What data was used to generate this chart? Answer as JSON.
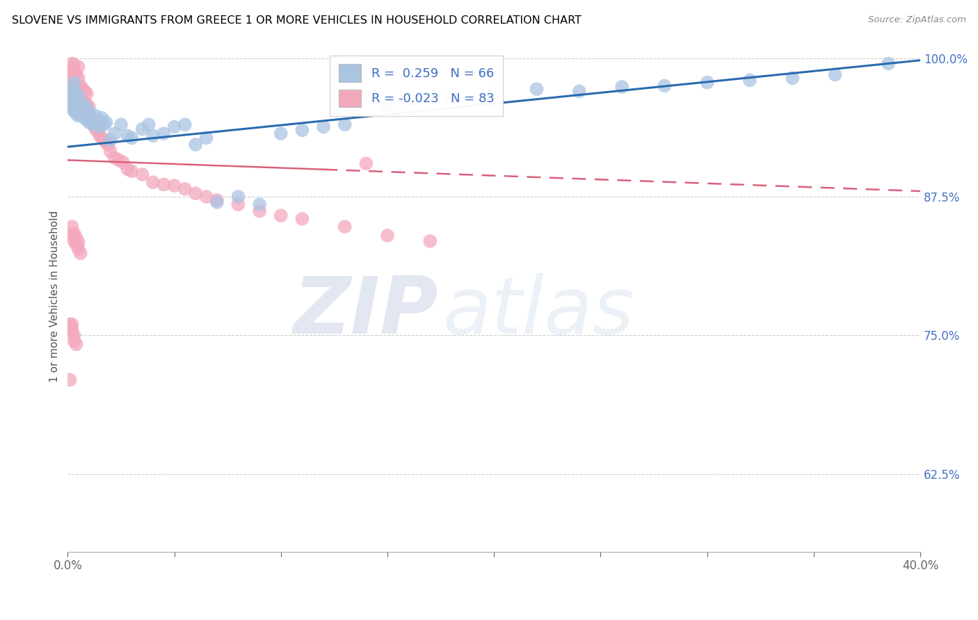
{
  "title": "SLOVENE VS IMMIGRANTS FROM GREECE 1 OR MORE VEHICLES IN HOUSEHOLD CORRELATION CHART",
  "source": "Source: ZipAtlas.com",
  "ylabel": "1 or more Vehicles in Household",
  "xlim": [
    0.0,
    0.4
  ],
  "ylim": [
    0.555,
    1.015
  ],
  "yticks": [
    0.625,
    0.75,
    0.875,
    1.0
  ],
  "ytick_labels": [
    "62.5%",
    "75.0%",
    "87.5%",
    "100.0%"
  ],
  "xticks": [
    0.0,
    0.05,
    0.1,
    0.15,
    0.2,
    0.25,
    0.3,
    0.35,
    0.4
  ],
  "xtick_labels": [
    "0.0%",
    "",
    "",
    "",
    "",
    "",
    "",
    "",
    "40.0%"
  ],
  "R_slovene": 0.259,
  "N_slovene": 66,
  "R_greece": -0.023,
  "N_greece": 83,
  "color_slovene": "#aac4e2",
  "color_greece": "#f4a8bc",
  "line_color_slovene": "#2a6bb0",
  "line_color_greece": "#d9607a",
  "watermark_zip": "ZIP",
  "watermark_atlas": "atlas",
  "slovene_x": [
    0.001,
    0.001,
    0.002,
    0.002,
    0.002,
    0.003,
    0.003,
    0.003,
    0.003,
    0.004,
    0.004,
    0.004,
    0.005,
    0.005,
    0.005,
    0.006,
    0.006,
    0.007,
    0.007,
    0.008,
    0.008,
    0.009,
    0.009,
    0.01,
    0.01,
    0.011,
    0.012,
    0.013,
    0.014,
    0.015,
    0.016,
    0.017,
    0.018,
    0.02,
    0.022,
    0.025,
    0.028,
    0.03,
    0.035,
    0.038,
    0.04,
    0.045,
    0.05,
    0.055,
    0.06,
    0.065,
    0.07,
    0.08,
    0.09,
    0.1,
    0.11,
    0.12,
    0.13,
    0.15,
    0.16,
    0.18,
    0.2,
    0.22,
    0.24,
    0.26,
    0.28,
    0.3,
    0.32,
    0.34,
    0.36,
    0.385
  ],
  "slovene_y": [
    0.96,
    0.968,
    0.955,
    0.965,
    0.972,
    0.952,
    0.962,
    0.97,
    0.978,
    0.95,
    0.96,
    0.968,
    0.948,
    0.958,
    0.965,
    0.952,
    0.96,
    0.948,
    0.958,
    0.946,
    0.956,
    0.944,
    0.954,
    0.942,
    0.952,
    0.944,
    0.94,
    0.948,
    0.944,
    0.938,
    0.946,
    0.94,
    0.942,
    0.926,
    0.932,
    0.94,
    0.93,
    0.928,
    0.936,
    0.94,
    0.93,
    0.932,
    0.938,
    0.94,
    0.922,
    0.928,
    0.87,
    0.875,
    0.868,
    0.932,
    0.935,
    0.938,
    0.94,
    0.958,
    0.962,
    0.964,
    0.968,
    0.972,
    0.97,
    0.974,
    0.975,
    0.978,
    0.98,
    0.982,
    0.985,
    0.995
  ],
  "greece_x": [
    0.001,
    0.001,
    0.001,
    0.002,
    0.002,
    0.002,
    0.002,
    0.002,
    0.003,
    0.003,
    0.003,
    0.003,
    0.003,
    0.004,
    0.004,
    0.004,
    0.004,
    0.005,
    0.005,
    0.005,
    0.005,
    0.005,
    0.006,
    0.006,
    0.006,
    0.007,
    0.007,
    0.007,
    0.008,
    0.008,
    0.008,
    0.009,
    0.009,
    0.009,
    0.01,
    0.01,
    0.011,
    0.012,
    0.013,
    0.014,
    0.015,
    0.016,
    0.017,
    0.018,
    0.019,
    0.02,
    0.022,
    0.024,
    0.026,
    0.028,
    0.03,
    0.035,
    0.04,
    0.045,
    0.05,
    0.055,
    0.06,
    0.065,
    0.07,
    0.08,
    0.09,
    0.1,
    0.11,
    0.13,
    0.15,
    0.17,
    0.002,
    0.002,
    0.003,
    0.003,
    0.004,
    0.004,
    0.005,
    0.005,
    0.006,
    0.001,
    0.001,
    0.002,
    0.002,
    0.003,
    0.003,
    0.004,
    0.14
  ],
  "greece_y": [
    0.968,
    0.978,
    0.988,
    0.96,
    0.97,
    0.98,
    0.99,
    0.995,
    0.958,
    0.968,
    0.978,
    0.988,
    0.994,
    0.955,
    0.965,
    0.975,
    0.985,
    0.952,
    0.962,
    0.972,
    0.982,
    0.992,
    0.955,
    0.965,
    0.975,
    0.952,
    0.962,
    0.972,
    0.95,
    0.96,
    0.97,
    0.948,
    0.958,
    0.968,
    0.946,
    0.956,
    0.944,
    0.94,
    0.936,
    0.934,
    0.93,
    0.928,
    0.926,
    0.924,
    0.922,
    0.916,
    0.91,
    0.908,
    0.906,
    0.9,
    0.898,
    0.895,
    0.888,
    0.886,
    0.885,
    0.882,
    0.878,
    0.875,
    0.872,
    0.868,
    0.862,
    0.858,
    0.855,
    0.848,
    0.84,
    0.835,
    0.84,
    0.848,
    0.835,
    0.842,
    0.832,
    0.838,
    0.828,
    0.834,
    0.824,
    0.76,
    0.71,
    0.76,
    0.755,
    0.75,
    0.745,
    0.742,
    0.905
  ]
}
